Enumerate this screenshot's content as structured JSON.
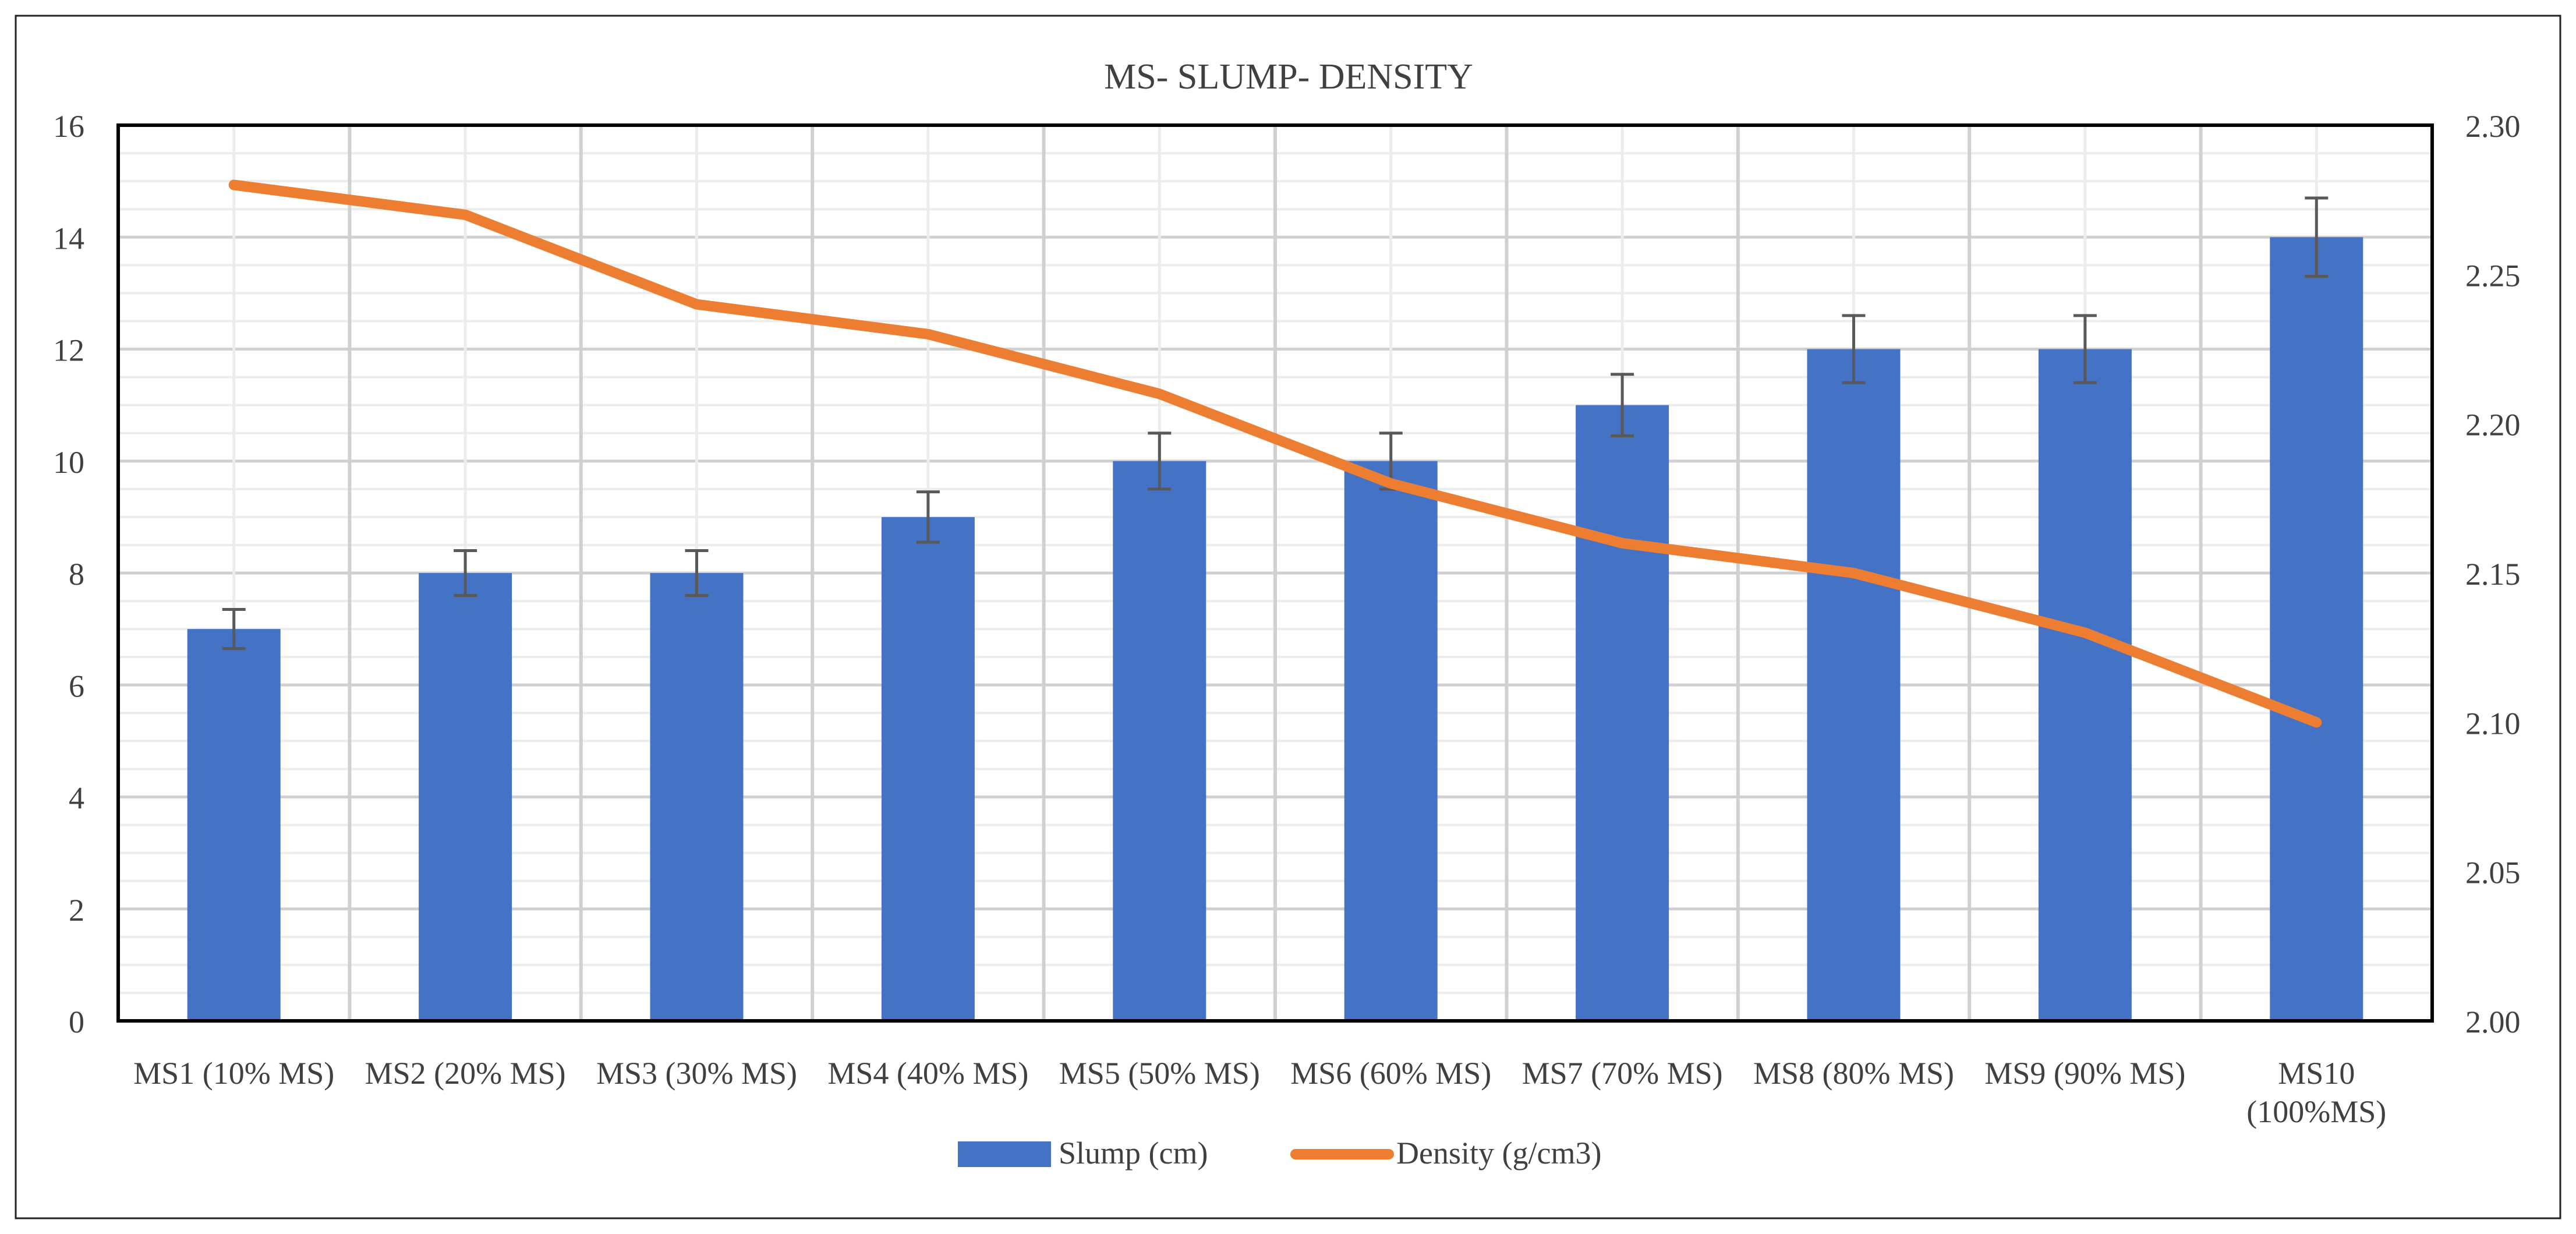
{
  "chart_data": {
    "type": "bar",
    "title": "MS- SLUMP- DENSITY",
    "categories": [
      "MS1 (10% MS)",
      "MS2 (20% MS)",
      "MS3 (30% MS)",
      "MS4 (40% MS)",
      "MS5 (50% MS)",
      "MS6 (60% MS)",
      "MS7 (70% MS)",
      "MS8 (80% MS)",
      "MS9 (90% MS)",
      "MS10 (100%MS)"
    ],
    "series": [
      {
        "name": "Slump (cm)",
        "type": "bar",
        "axis": "left",
        "color": "#4472C4",
        "values": [
          7,
          8,
          8,
          9,
          10,
          10,
          11,
          12,
          12,
          14
        ],
        "error": [
          0.35,
          0.4,
          0.4,
          0.45,
          0.5,
          0.5,
          0.55,
          0.6,
          0.6,
          0.7
        ]
      },
      {
        "name": "Density (g/cm3)",
        "type": "line",
        "axis": "right",
        "color": "#ED7D31",
        "values": [
          2.28,
          2.27,
          2.24,
          2.23,
          2.21,
          2.18,
          2.16,
          2.15,
          2.13,
          2.1
        ]
      }
    ],
    "y_left": {
      "min": 0,
      "max": 16,
      "ticks": [
        "0",
        "2",
        "4",
        "6",
        "8",
        "10",
        "12",
        "14",
        "16"
      ]
    },
    "y_right": {
      "min": 2.0,
      "max": 2.3,
      "ticks": [
        "2.00",
        "2.05",
        "2.10",
        "2.15",
        "2.20",
        "2.25",
        "2.30"
      ]
    },
    "grid": true,
    "legend": "bottom"
  }
}
